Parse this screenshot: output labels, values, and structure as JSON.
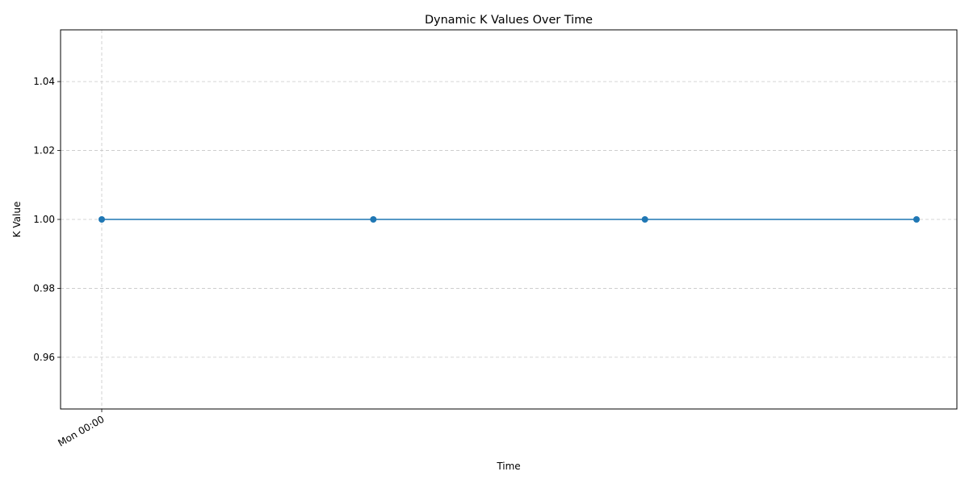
{
  "chart_data": {
    "type": "line",
    "title": "Dynamic K Values Over Time",
    "xlabel": "Time",
    "ylabel": "K Value",
    "x_tick_labels": [
      "Mon 00:00"
    ],
    "y_ticks": [
      0.96,
      0.98,
      1.0,
      1.02,
      1.04
    ],
    "y_tick_labels": [
      "0.96",
      "0.98",
      "1.00",
      "1.02",
      "1.04"
    ],
    "ylim": [
      0.945,
      1.055
    ],
    "grid": true,
    "grid_style": "dashed",
    "series": [
      {
        "color": "#1f77b4",
        "marker": "circle",
        "points": [
          {
            "x": "Mon 00:00",
            "y": 1.0
          },
          {
            "x": "",
            "y": 1.0
          },
          {
            "x": "",
            "y": 1.0
          },
          {
            "x": "",
            "y": 1.0
          }
        ]
      }
    ]
  }
}
